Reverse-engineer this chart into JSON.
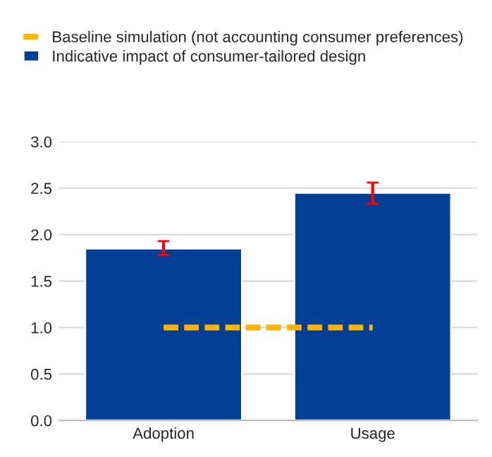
{
  "chart_data": {
    "type": "bar",
    "categories": [
      "Adoption",
      "Usage"
    ],
    "series": [
      {
        "name": "Baseline simulation (not accounting consumer preferences)",
        "type": "line",
        "color": "#ffb400",
        "line_style": "dashed",
        "values": [
          1.0,
          1.0
        ]
      },
      {
        "name": "Indicative impact of consumer-tailored design",
        "color": "#003f94",
        "values": [
          1.85,
          2.45
        ],
        "errors": [
          [
            1.78,
            1.93
          ],
          [
            2.33,
            2.56
          ]
        ]
      }
    ],
    "ylim": [
      0,
      3.0
    ],
    "yticks": [
      {
        "value": 0,
        "label": "0.0"
      },
      {
        "value": 0.5,
        "label": "0.5"
      },
      {
        "value": 1.0,
        "label": "1.0"
      },
      {
        "value": 1.5,
        "label": "1.5"
      },
      {
        "value": 2.0,
        "label": "2.0"
      },
      {
        "value": 2.5,
        "label": "2.5"
      },
      {
        "value": 3.0,
        "label": "3.0"
      }
    ],
    "grid": "y",
    "legend": "top"
  }
}
